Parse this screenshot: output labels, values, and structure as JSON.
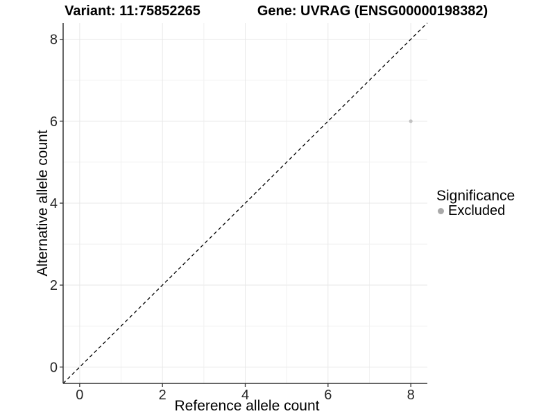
{
  "chart_data": {
    "type": "scatter",
    "title_left": "Variant: 11:75852265",
    "title_right": "Gene: UVRAG (ENSG00000198382)",
    "xlabel": "Reference allele count",
    "ylabel": "Alternative allele count",
    "xlim": [
      -0.4,
      8.4
    ],
    "ylim": [
      -0.4,
      8.4
    ],
    "xticks": [
      0,
      2,
      4,
      6,
      8
    ],
    "yticks": [
      0,
      2,
      4,
      6,
      8
    ],
    "minor_gridlines": [
      1,
      3,
      5,
      7
    ],
    "grid": "on",
    "legend_position": "right",
    "series": [
      {
        "name": "Excluded",
        "color": "#bcbcbc",
        "points": [
          {
            "x": 8,
            "y": 6
          }
        ]
      }
    ],
    "reference_line": {
      "kind": "identity y=x",
      "style": "dashed",
      "color": "#000000"
    },
    "legend": {
      "title": "Significance",
      "entries": [
        {
          "label": "Excluded",
          "color": "#a9a9a9"
        }
      ]
    },
    "colors": {
      "background": "#ffffff",
      "grid_major": "#e8e8e8",
      "grid_minor": "#f1f1f1",
      "axis_line": "#333333",
      "tick_label": "#262626",
      "point": "#c2c2c2"
    }
  }
}
